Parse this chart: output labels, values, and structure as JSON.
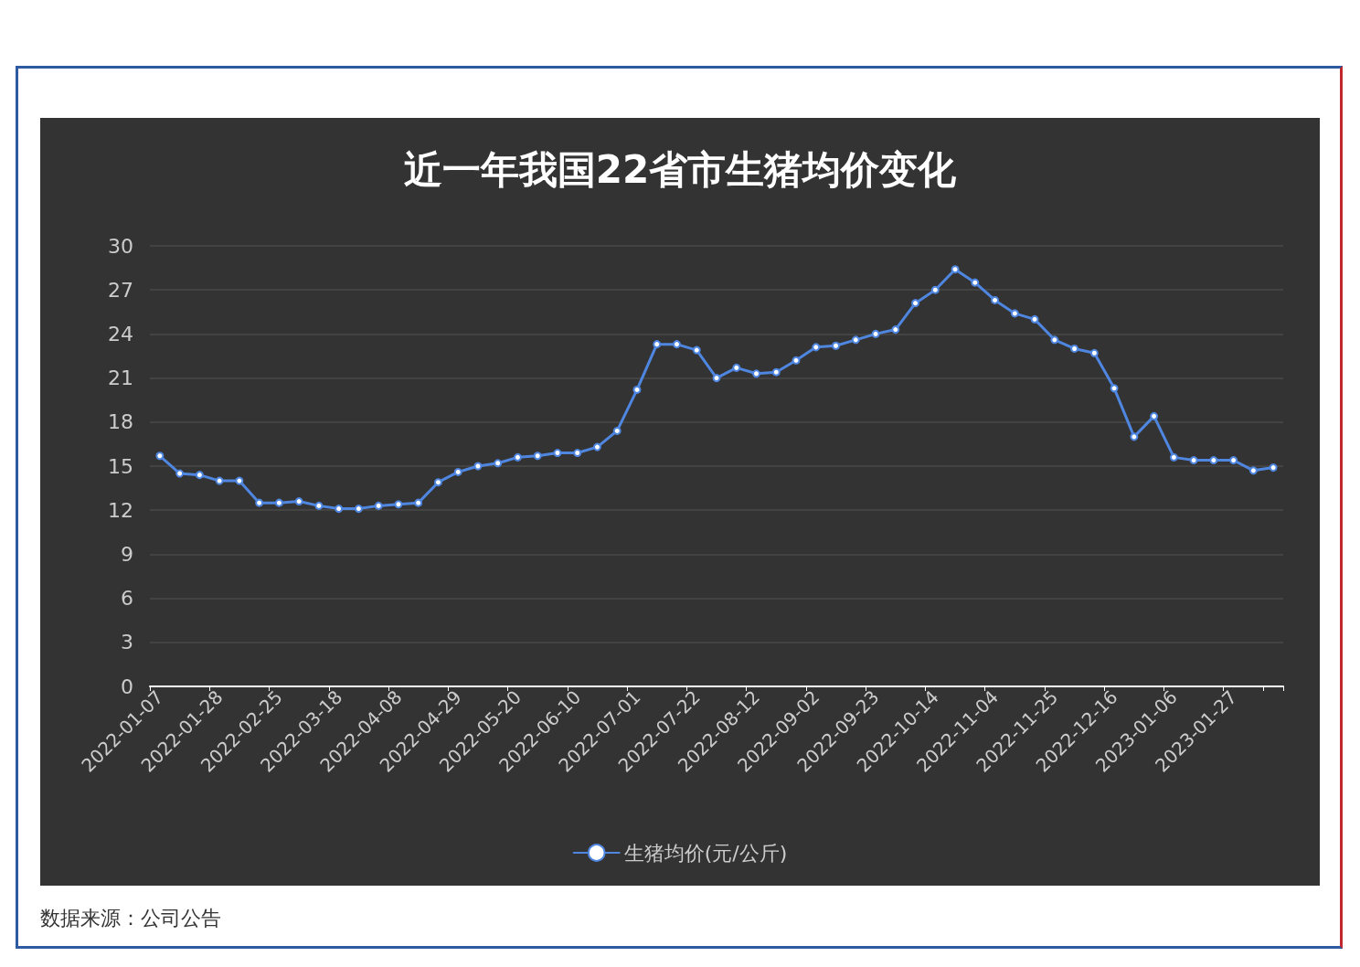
{
  "chart_data": {
    "type": "line",
    "title": "近一年我国22省市生猪均价变化",
    "categories": [
      "2022-01-07",
      null,
      null,
      "2022-01-28",
      null,
      null,
      "2022-02-25",
      null,
      null,
      "2022-03-18",
      null,
      null,
      "2022-04-08",
      null,
      null,
      "2022-04-29",
      null,
      null,
      "2022-05-20",
      null,
      null,
      "2022-06-10",
      null,
      null,
      "2022-07-01",
      null,
      null,
      "2022-07-22",
      null,
      null,
      "2022-08-12",
      null,
      null,
      "2022-09-02",
      null,
      null,
      "2022-09-23",
      null,
      null,
      "2022-10-14",
      null,
      null,
      "2022-11-04",
      null,
      null,
      "2022-11-25",
      null,
      null,
      "2022-12-16",
      null,
      null,
      "2023-01-06",
      null,
      null,
      "2023-01-27",
      null,
      null
    ],
    "series": [
      {
        "name": "生猪均价(元/公斤)",
        "color": "#4f86e0",
        "values": [
          15.7,
          14.5,
          14.4,
          14.0,
          14.0,
          12.5,
          12.5,
          12.6,
          12.3,
          12.1,
          12.1,
          12.3,
          12.4,
          12.5,
          13.9,
          14.6,
          15.0,
          15.2,
          15.6,
          15.7,
          15.9,
          15.9,
          16.3,
          17.4,
          20.2,
          23.3,
          23.3,
          22.9,
          21.0,
          21.7,
          21.3,
          21.4,
          22.2,
          23.1,
          23.2,
          23.6,
          24.0,
          24.3,
          26.1,
          27.0,
          28.4,
          27.5,
          26.3,
          25.4,
          25.0,
          23.6,
          23.0,
          22.7,
          20.3,
          17.0,
          18.4,
          15.6,
          15.4,
          15.4,
          15.4,
          14.7,
          14.9
        ]
      }
    ],
    "ylim": [
      0,
      30
    ],
    "yticks": [
      0,
      3,
      6,
      9,
      12,
      15,
      18,
      21,
      24,
      27,
      30
    ],
    "grid": "y",
    "legend": "bottom",
    "marker": "circle",
    "line_style": "solid",
    "annotations": [
      "数据来源：公司公告"
    ]
  }
}
